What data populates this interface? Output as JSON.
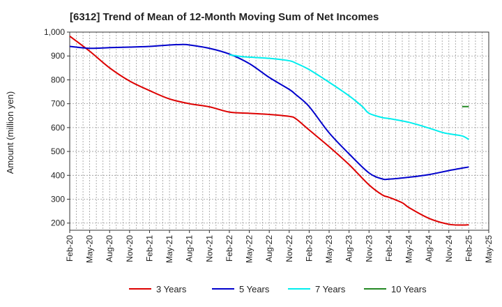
{
  "chart_data": {
    "type": "line",
    "title": "[6312]  Trend of Mean of 12-Month Moving Sum of Net Incomes",
    "xlabel": "",
    "ylabel": "Amount (million yen)",
    "ylim": [
      170,
      1000
    ],
    "yticks": [
      200,
      300,
      400,
      500,
      600,
      700,
      800,
      900,
      1000
    ],
    "ytick_labels": [
      "200",
      "300",
      "400",
      "500",
      "600",
      "700",
      "800",
      "900",
      "1,000"
    ],
    "x_tick_labels": [
      "Feb-20",
      "May-20",
      "Aug-20",
      "Nov-20",
      "Feb-21",
      "May-21",
      "Aug-21",
      "Nov-21",
      "Feb-22",
      "May-22",
      "Aug-22",
      "Nov-22",
      "Feb-23",
      "May-23",
      "Aug-23",
      "Nov-23",
      "Feb-24",
      "May-24",
      "Aug-24",
      "Nov-24",
      "Feb-25",
      "May-25"
    ],
    "x_start": "Feb-20",
    "x_end": "May-25",
    "grid": true,
    "legend_position": "bottom",
    "series": [
      {
        "name": "3 Years",
        "color": "#dd0000",
        "x": [
          "Feb-20",
          "May-20",
          "Aug-20",
          "Nov-20",
          "Feb-21",
          "May-21",
          "Aug-21",
          "Nov-21",
          "Feb-22",
          "May-22",
          "Aug-22",
          "Nov-22",
          "Dec-22",
          "Feb-23",
          "May-23",
          "Aug-23",
          "Nov-23",
          "Jan-24",
          "Feb-24",
          "Apr-24",
          "May-24",
          "Aug-24",
          "Nov-24",
          "Jan-25",
          "Feb-25"
        ],
        "values": [
          983,
          920,
          850,
          795,
          755,
          720,
          700,
          687,
          665,
          660,
          655,
          647,
          637,
          590,
          520,
          445,
          360,
          318,
          308,
          285,
          265,
          220,
          195,
          192,
          193
        ]
      },
      {
        "name": "5 Years",
        "color": "#0000cc",
        "x": [
          "Feb-20",
          "May-20",
          "Aug-20",
          "Nov-20",
          "Feb-21",
          "May-21",
          "Jul-21",
          "Aug-21",
          "Nov-21",
          "Feb-22",
          "May-22",
          "Aug-22",
          "Nov-22",
          "Dec-22",
          "Feb-23",
          "May-23",
          "Aug-23",
          "Nov-23",
          "Jan-24",
          "Feb-24",
          "May-24",
          "Aug-24",
          "Nov-24",
          "Feb-25"
        ],
        "values": [
          940,
          932,
          935,
          937,
          940,
          946,
          948,
          946,
          932,
          908,
          868,
          810,
          760,
          738,
          688,
          578,
          490,
          410,
          385,
          384,
          392,
          403,
          420,
          435
        ]
      },
      {
        "name": "7 Years",
        "color": "#00eeee",
        "x": [
          "Feb-22",
          "Apr-22",
          "May-22",
          "Aug-22",
          "Nov-22",
          "Dec-22",
          "Feb-23",
          "May-23",
          "Aug-23",
          "Oct-23",
          "Nov-23",
          "Jan-24",
          "Feb-24",
          "May-24",
          "Aug-24",
          "Oct-24",
          "Nov-24",
          "Jan-25",
          "Feb-25"
        ],
        "values": [
          905,
          897,
          895,
          890,
          880,
          870,
          843,
          790,
          733,
          688,
          660,
          642,
          638,
          622,
          598,
          580,
          574,
          565,
          550
        ]
      },
      {
        "name": "10 Years",
        "color": "#228822",
        "x": [
          "Jan-25",
          "Feb-25"
        ],
        "values": [
          688,
          688
        ]
      }
    ]
  }
}
